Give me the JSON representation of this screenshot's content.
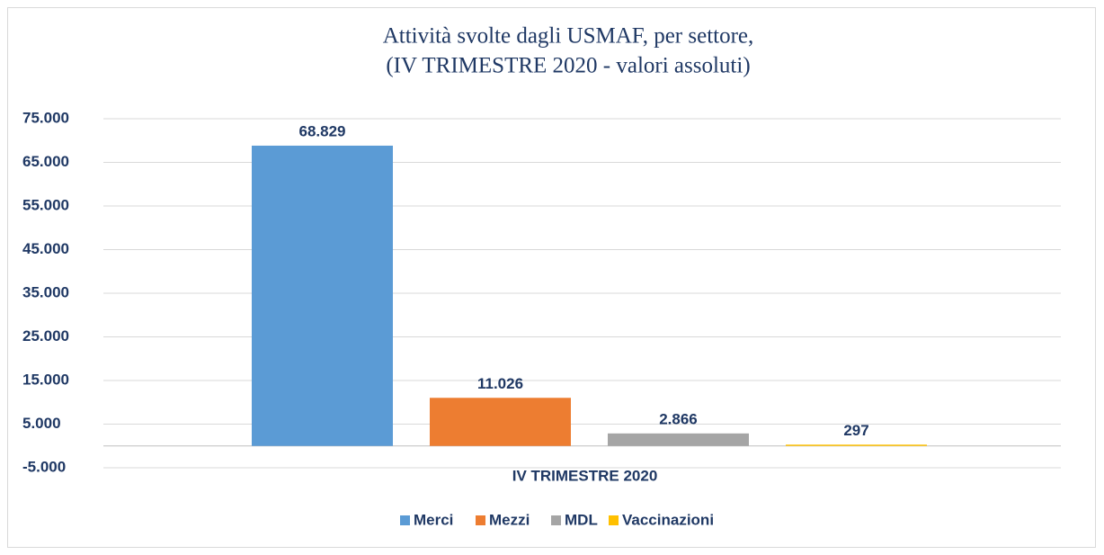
{
  "chart_data": {
    "type": "bar",
    "title": [
      "Attività svolte dagli USMAF, per settore,",
      "(IV TRIMESTRE 2020 - valori assoluti)"
    ],
    "categories": [
      "IV TRIMESTRE 2020"
    ],
    "series": [
      {
        "name": "Merci",
        "color": "#5b9bd5",
        "values": [
          68829
        ],
        "value_labels": [
          "68.829"
        ]
      },
      {
        "name": "Mezzi",
        "color": "#ed7d31",
        "values": [
          11026
        ],
        "value_labels": [
          "11.026"
        ]
      },
      {
        "name": "MDL",
        "color": "#a5a5a5",
        "values": [
          2866
        ],
        "value_labels": [
          "2.866"
        ]
      },
      {
        "name": "Vaccinazioni",
        "color": "#ffc000",
        "values": [
          297
        ],
        "value_labels": [
          "297"
        ]
      }
    ],
    "ylim": [
      -5000,
      75000
    ],
    "yticks": [
      {
        "value": -5000,
        "label": "-5.000"
      },
      {
        "value": 5000,
        "label": "5.000"
      },
      {
        "value": 15000,
        "label": "15.000"
      },
      {
        "value": 25000,
        "label": "25.000"
      },
      {
        "value": 35000,
        "label": "35.000"
      },
      {
        "value": 45000,
        "label": "45.000"
      },
      {
        "value": 55000,
        "label": "55.000"
      },
      {
        "value": 65000,
        "label": "65.000"
      },
      {
        "value": 75000,
        "label": "75.000"
      }
    ],
    "grid": true,
    "legend": "bottom"
  }
}
